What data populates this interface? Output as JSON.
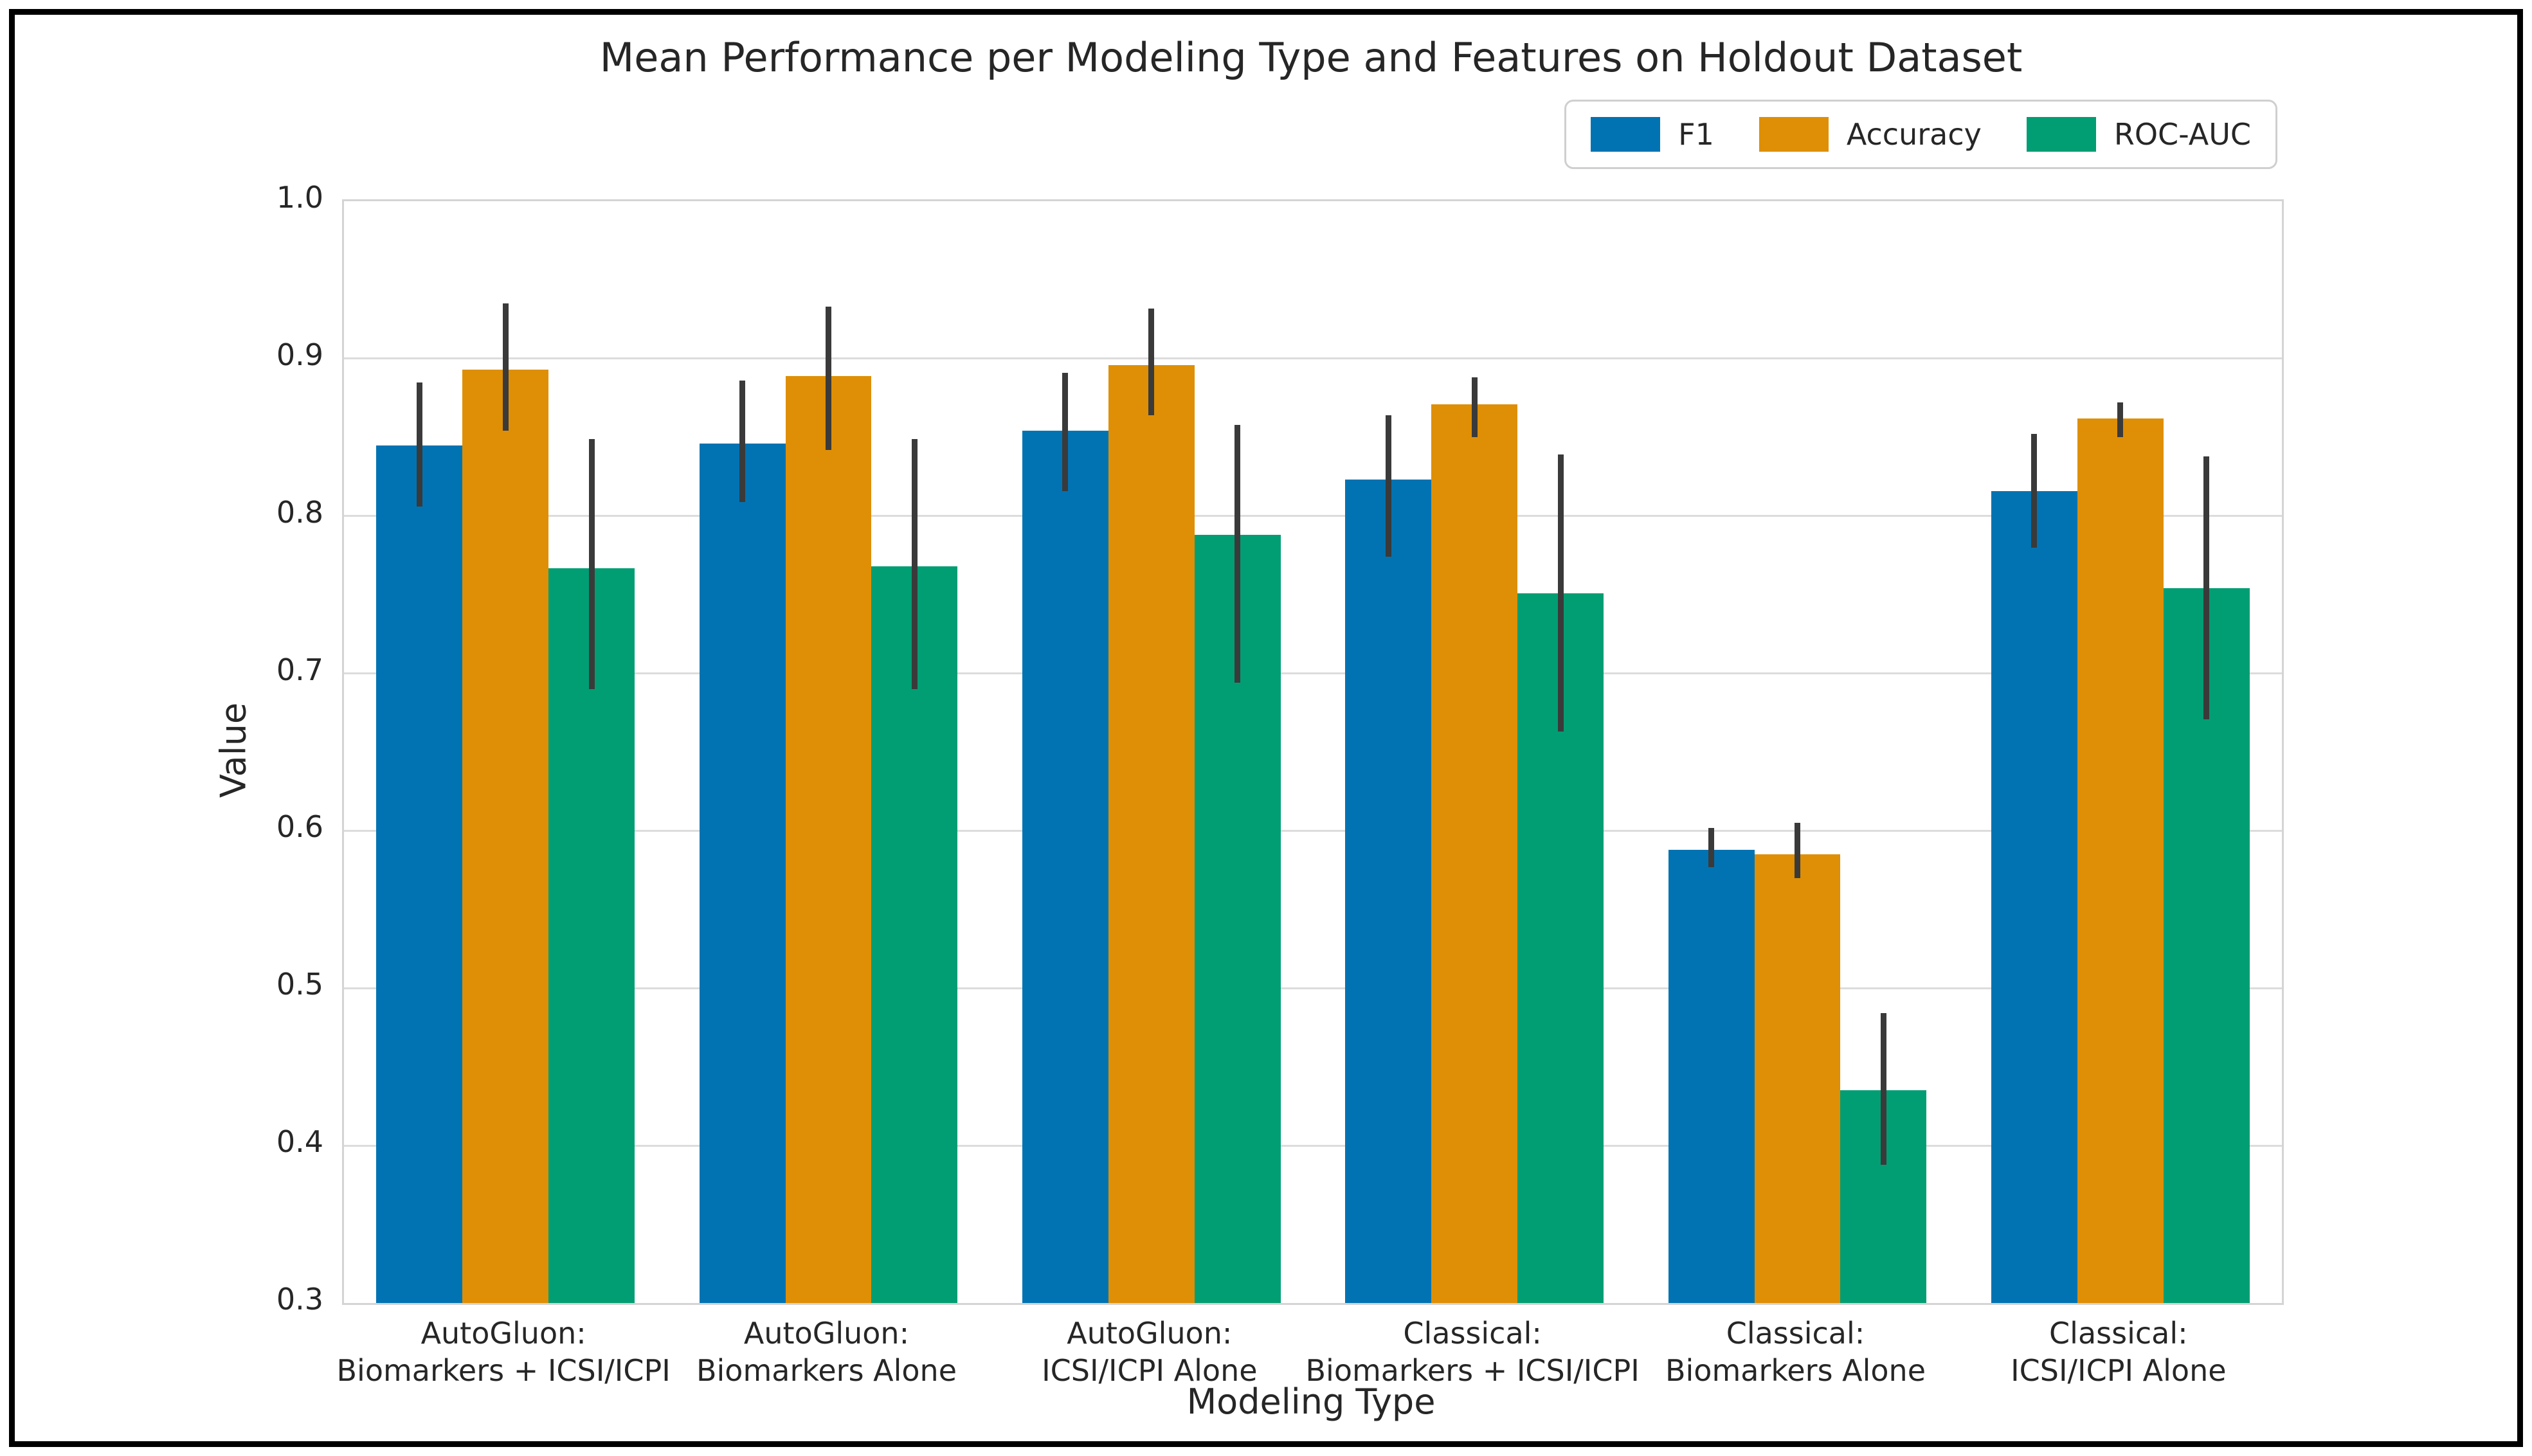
{
  "chart_data": {
    "type": "bar",
    "title": "Mean Performance per Modeling Type and Features on Holdout Dataset",
    "xlabel": "Modeling Type",
    "ylabel": "Value",
    "ylim": [
      0.3,
      1.0
    ],
    "yticks": [
      1.0,
      0.9,
      0.8,
      0.7,
      0.6,
      0.5,
      0.4,
      0.3
    ],
    "grid": true,
    "legend_position": "top-right-above-axes",
    "error_bar_color": "#3a3a3a",
    "grid_color": "#dcdcdc",
    "categories": [
      {
        "line1": "AutoGluon:",
        "line2": "Biomarkers + ICSI/ICPI"
      },
      {
        "line1": "AutoGluon:",
        "line2": "Biomarkers Alone"
      },
      {
        "line1": "AutoGluon:",
        "line2": "ICSI/ICPI Alone"
      },
      {
        "line1": "Classical:",
        "line2": "Biomarkers + ICSI/ICPI"
      },
      {
        "line1": "Classical:",
        "line2": "Biomarkers Alone"
      },
      {
        "line1": "Classical:",
        "line2": "ICSI/ICPI Alone"
      }
    ],
    "series": [
      {
        "name": "F1",
        "color": "#0173B2",
        "values": [
          0.845,
          0.846,
          0.854,
          0.823,
          0.588,
          0.816
        ],
        "err_lo": [
          0.806,
          0.809,
          0.816,
          0.774,
          0.577,
          0.78
        ],
        "err_hi": [
          0.885,
          0.886,
          0.891,
          0.864,
          0.602,
          0.852
        ]
      },
      {
        "name": "Accuracy",
        "color": "#DE8F05",
        "values": [
          0.893,
          0.889,
          0.896,
          0.871,
          0.585,
          0.862
        ],
        "err_lo": [
          0.854,
          0.842,
          0.864,
          0.85,
          0.57,
          0.85
        ],
        "err_hi": [
          0.935,
          0.933,
          0.932,
          0.888,
          0.605,
          0.872
        ]
      },
      {
        "name": "ROC-AUC",
        "color": "#029E73",
        "values": [
          0.767,
          0.768,
          0.788,
          0.751,
          0.435,
          0.754
        ],
        "err_lo": [
          0.69,
          0.69,
          0.694,
          0.663,
          0.388,
          0.671
        ],
        "err_hi": [
          0.849,
          0.849,
          0.858,
          0.839,
          0.484,
          0.838
        ]
      }
    ]
  }
}
